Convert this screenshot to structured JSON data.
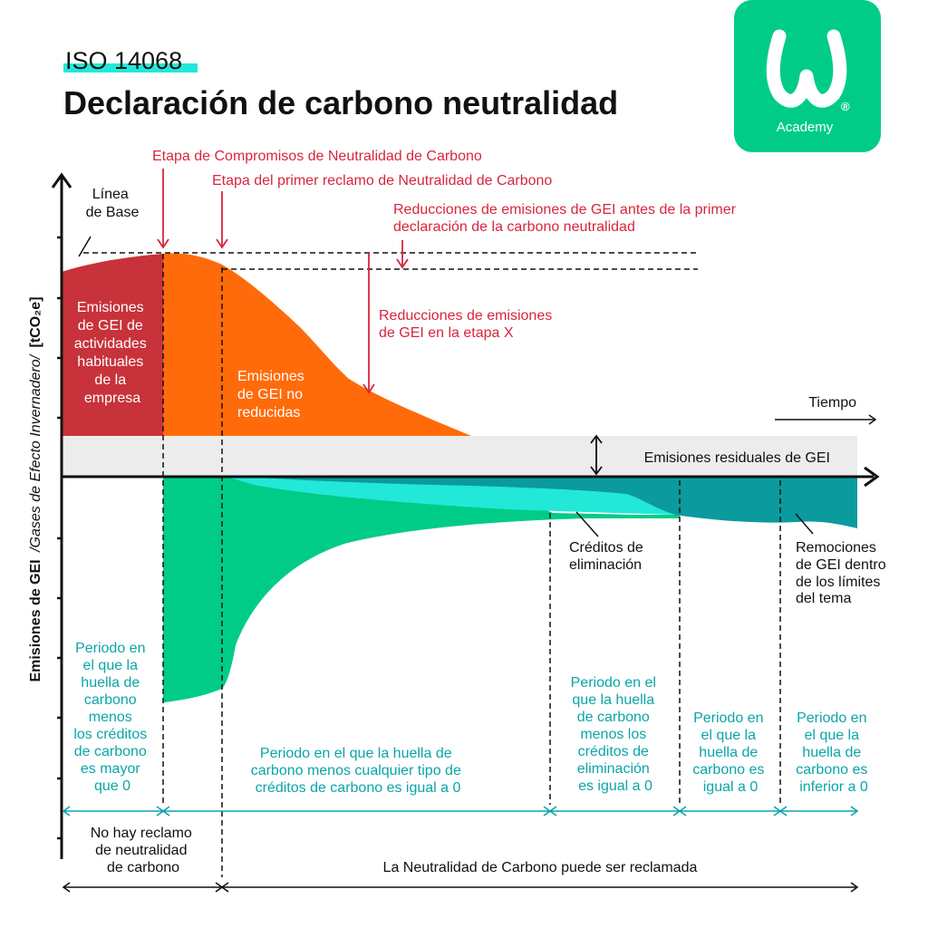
{
  "header": {
    "standard": "ISO 14068",
    "title": "Declaración de carbono neutralidad"
  },
  "logo": {
    "text": "Academy",
    "registered": "®"
  },
  "colors": {
    "red": "#C8323A",
    "orange": "#FF6B0A",
    "green": "#00CC88",
    "cyan": "#22E8D8",
    "teal": "#0B9A9E",
    "annotation": "#D7263D",
    "period_text": "#0BA5A8",
    "residual_band": "#ECECEC",
    "dark": "#111111"
  },
  "axis": {
    "y_label_main": "Emisiones de GEI",
    "y_label_sub": "/Gases de Efecto Invernadero/",
    "y_unit": "[tCO₂e]",
    "x_label": "Tiempo"
  },
  "labels": {
    "baseline": [
      "Línea",
      "de Base"
    ],
    "habitual": [
      "Emisiones",
      "de GEI de",
      "actividades",
      "habituales",
      "de la",
      "empresa"
    ],
    "not_reduced": [
      "Emisiones",
      "de GEI no",
      "reducidas"
    ],
    "residual": "Emisiones residuales de GEI",
    "removal_credits": [
      "Créditos de",
      "eliminación"
    ],
    "removals": [
      "Remociones",
      "de GEI dentro",
      "de los límites",
      "del tema"
    ]
  },
  "annotations": {
    "commitment": "Etapa de Compromisos de Neutralidad de Carbono",
    "first_claim": "Etapa del primer reclamo de Neutralidad de Carbono",
    "reductions_before": [
      "Reducciones de emisiones de GEI antes de la primer",
      "declaración de la carbono neutralidad"
    ],
    "reductions_stage": [
      "Reducciones de emisiones",
      "de GEI en la etapa X"
    ]
  },
  "periods": {
    "p1": [
      "Periodo en",
      "el que la",
      "huella de",
      "carbono",
      "menos",
      "los créditos",
      "de carbono",
      "es mayor",
      "que 0"
    ],
    "p2": [
      "Periodo en el que la huella de",
      "carbono menos cualquier tipo de",
      "créditos de carbono es igual a 0"
    ],
    "p3": [
      "Periodo en el",
      "que la huella",
      "de carbono",
      "menos los",
      "créditos de",
      "eliminación",
      "es igual a 0"
    ],
    "p4": [
      "Periodo en",
      "el que la",
      "huella de",
      "carbono es",
      "igual a 0"
    ],
    "p5": [
      "Periodo en",
      "el que la",
      "huella de",
      "carbono es",
      "inferior a 0"
    ]
  },
  "claims": {
    "no_claim": [
      "No hay reclamo",
      "de neutralidad",
      "de carbono"
    ],
    "claimable": "La Neutralidad de Carbono puede ser reclamada"
  }
}
